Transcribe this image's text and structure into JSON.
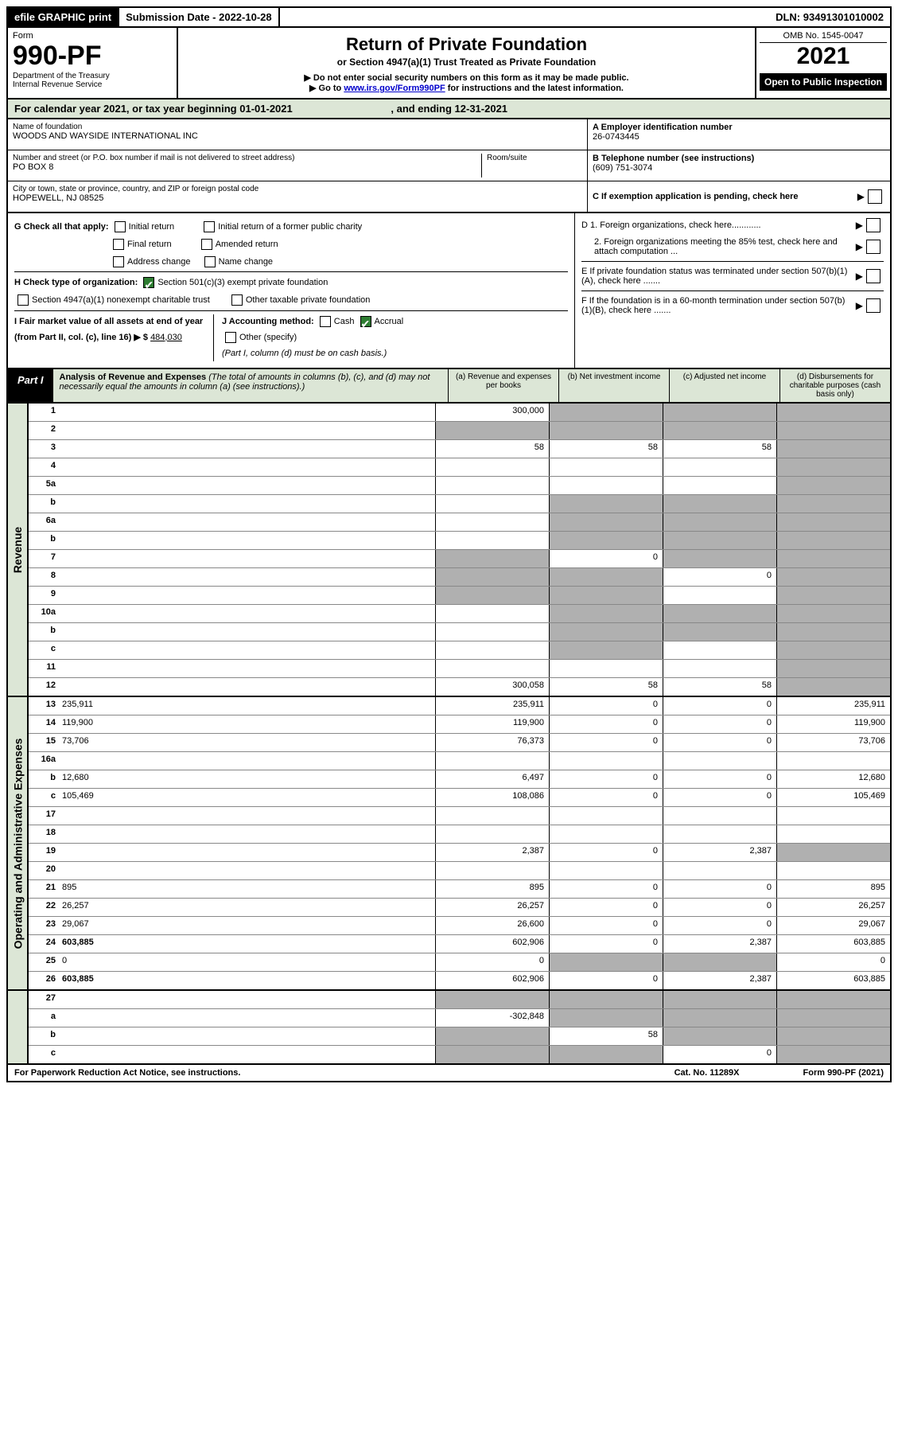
{
  "topbar": {
    "efile": "efile GRAPHIC print",
    "subdate_label": "Submission Date - ",
    "subdate": "2022-10-28",
    "dln_label": "DLN: ",
    "dln": "93491301010002"
  },
  "header": {
    "form_label": "Form",
    "form_num": "990-PF",
    "dept": "Department of the Treasury",
    "irs": "Internal Revenue Service",
    "title": "Return of Private Foundation",
    "subtitle": "or Section 4947(a)(1) Trust Treated as Private Foundation",
    "note1": "▶ Do not enter social security numbers on this form as it may be made public.",
    "note2_pre": "▶ Go to ",
    "note2_link": "www.irs.gov/Form990PF",
    "note2_post": " for instructions and the latest information.",
    "omb": "OMB No. 1545-0047",
    "year": "2021",
    "open": "Open to Public Inspection"
  },
  "calyear": {
    "text_pre": "For calendar year 2021, or tax year beginning ",
    "begin": "01-01-2021",
    "mid": " , and ending ",
    "end": "12-31-2021"
  },
  "info": {
    "name_lbl": "Name of foundation",
    "name": "WOODS AND WAYSIDE INTERNATIONAL INC",
    "addr_lbl": "Number and street (or P.O. box number if mail is not delivered to street address)",
    "addr": "PO BOX 8",
    "room_lbl": "Room/suite",
    "city_lbl": "City or town, state or province, country, and ZIP or foreign postal code",
    "city": "HOPEWELL, NJ  08525",
    "ein_lbl": "A Employer identification number",
    "ein": "26-0743445",
    "tel_lbl": "B Telephone number (see instructions)",
    "tel": "(609) 751-3074",
    "c_lbl": "C If exemption application is pending, check here"
  },
  "checks": {
    "g_label": "G Check all that apply:",
    "initial": "Initial return",
    "initial_former": "Initial return of a former public charity",
    "final": "Final return",
    "amended": "Amended return",
    "addr_change": "Address change",
    "name_change": "Name change",
    "h_label": "H Check type of organization:",
    "h_501c3": "Section 501(c)(3) exempt private foundation",
    "h_4947": "Section 4947(a)(1) nonexempt charitable trust",
    "h_other": "Other taxable private foundation",
    "i_label": "I Fair market value of all assets at end of year (from Part II, col. (c), line 16) ▶ $",
    "i_value": "484,030",
    "j_label": "J Accounting method:",
    "j_cash": "Cash",
    "j_accrual": "Accrual",
    "j_other": "Other (specify)",
    "j_note": "(Part I, column (d) must be on cash basis.)",
    "d1": "D 1. Foreign organizations, check here............",
    "d2": "2. Foreign organizations meeting the 85% test, check here and attach computation ...",
    "e": "E  If private foundation status was terminated under section 507(b)(1)(A), check here .......",
    "f": "F  If the foundation is in a 60-month termination under section 507(b)(1)(B), check here .......",
    "arrow": "▶"
  },
  "part1": {
    "label": "Part I",
    "title": "Analysis of Revenue and Expenses",
    "note": " (The total of amounts in columns (b), (c), and (d) may not necessarily equal the amounts in column (a) (see instructions).)",
    "col_a": "(a) Revenue and expenses per books",
    "col_b": "(b) Net investment income",
    "col_c": "(c) Adjusted net income",
    "col_d": "(d) Disbursements for charitable purposes (cash basis only)"
  },
  "revenue_label": "Revenue",
  "expense_label": "Operating and Administrative Expenses",
  "rows": {
    "r1": {
      "n": "1",
      "d": "",
      "a": "300,000",
      "b": "",
      "c": "",
      "sb": true,
      "sc": true,
      "sd": true
    },
    "r2": {
      "n": "2",
      "d": "",
      "a": "",
      "b": "",
      "c": "",
      "sa": true,
      "sb": true,
      "sc": true,
      "sd": true
    },
    "r3": {
      "n": "3",
      "d": "",
      "a": "58",
      "b": "58",
      "c": "58",
      "sd": true
    },
    "r4": {
      "n": "4",
      "d": "",
      "a": "",
      "b": "",
      "c": "",
      "sd": true
    },
    "r5a": {
      "n": "5a",
      "d": "",
      "a": "",
      "b": "",
      "c": "",
      "sd": true
    },
    "r5b": {
      "n": "b",
      "d": "",
      "a": "",
      "b": "",
      "c": "",
      "sa": false,
      "sb": true,
      "sc": true,
      "sd": true
    },
    "r6a": {
      "n": "6a",
      "d": "",
      "a": "",
      "b": "",
      "c": "",
      "sb": true,
      "sc": true,
      "sd": true
    },
    "r6b": {
      "n": "b",
      "d": "",
      "a": "",
      "b": "",
      "c": "",
      "sa": false,
      "sb": true,
      "sc": true,
      "sd": true
    },
    "r7": {
      "n": "7",
      "d": "",
      "a": "",
      "b": "0",
      "c": "",
      "sa": true,
      "sc": true,
      "sd": true
    },
    "r8": {
      "n": "8",
      "d": "",
      "a": "",
      "b": "",
      "c": "0",
      "sa": true,
      "sb": true,
      "sd": true
    },
    "r9": {
      "n": "9",
      "d": "",
      "a": "",
      "b": "",
      "c": "",
      "sa": true,
      "sb": true,
      "sd": true
    },
    "r10a": {
      "n": "10a",
      "d": "",
      "a": "",
      "b": "",
      "c": "",
      "sa": false,
      "sb": true,
      "sc": true,
      "sd": true
    },
    "r10b": {
      "n": "b",
      "d": "",
      "a": "",
      "b": "",
      "c": "",
      "sa": false,
      "sb": true,
      "sc": true,
      "sd": true
    },
    "r10c": {
      "n": "c",
      "d": "",
      "a": "",
      "b": "",
      "c": "",
      "sb": true,
      "sd": true
    },
    "r11": {
      "n": "11",
      "d": "",
      "a": "",
      "b": "",
      "c": "",
      "sd": true
    },
    "r12": {
      "n": "12",
      "d": "",
      "a": "300,058",
      "b": "58",
      "c": "58",
      "bold": true,
      "sd": true
    },
    "r13": {
      "n": "13",
      "d": "235,911",
      "a": "235,911",
      "b": "0",
      "c": "0"
    },
    "r14": {
      "n": "14",
      "d": "119,900",
      "a": "119,900",
      "b": "0",
      "c": "0"
    },
    "r15": {
      "n": "15",
      "d": "73,706",
      "a": "76,373",
      "b": "0",
      "c": "0"
    },
    "r16a": {
      "n": "16a",
      "d": "",
      "a": "",
      "b": "",
      "c": ""
    },
    "r16b": {
      "n": "b",
      "d": "12,680",
      "a": "6,497",
      "b": "0",
      "c": "0"
    },
    "r16c": {
      "n": "c",
      "d": "105,469",
      "a": "108,086",
      "b": "0",
      "c": "0"
    },
    "r17": {
      "n": "17",
      "d": "",
      "a": "",
      "b": "",
      "c": ""
    },
    "r18": {
      "n": "18",
      "d": "",
      "a": "",
      "b": "",
      "c": ""
    },
    "r19": {
      "n": "19",
      "d": "",
      "a": "2,387",
      "b": "0",
      "c": "2,387",
      "sd": true
    },
    "r20": {
      "n": "20",
      "d": "",
      "a": "",
      "b": "",
      "c": ""
    },
    "r21": {
      "n": "21",
      "d": "895",
      "a": "895",
      "b": "0",
      "c": "0"
    },
    "r22": {
      "n": "22",
      "d": "26,257",
      "a": "26,257",
      "b": "0",
      "c": "0"
    },
    "r23": {
      "n": "23",
      "d": "29,067",
      "a": "26,600",
      "b": "0",
      "c": "0"
    },
    "r24": {
      "n": "24",
      "d": "603,885",
      "a": "602,906",
      "b": "0",
      "c": "2,387",
      "bold": true
    },
    "r25": {
      "n": "25",
      "d": "0",
      "a": "0",
      "b": "",
      "c": "",
      "sb": true,
      "sc": true
    },
    "r26": {
      "n": "26",
      "d": "603,885",
      "a": "602,906",
      "b": "0",
      "c": "2,387",
      "bold": true
    },
    "r27": {
      "n": "27",
      "d": "",
      "a": "",
      "b": "",
      "c": "",
      "sa": true,
      "sb": true,
      "sc": true,
      "sd": true
    },
    "r27a": {
      "n": "a",
      "d": "",
      "a": "-302,848",
      "b": "",
      "c": "",
      "bold": true,
      "sb": true,
      "sc": true,
      "sd": true
    },
    "r27b": {
      "n": "b",
      "d": "",
      "a": "",
      "b": "58",
      "c": "",
      "bold": true,
      "sa": true,
      "sc": true,
      "sd": true
    },
    "r27c": {
      "n": "c",
      "d": "",
      "a": "",
      "b": "",
      "c": "0",
      "bold": true,
      "sa": true,
      "sb": true,
      "sd": true
    }
  },
  "footer": {
    "left": "For Paperwork Reduction Act Notice, see instructions.",
    "cat": "Cat. No. 11289X",
    "form": "Form 990-PF (2021)"
  },
  "colors": {
    "greenish": "#dce6d6",
    "shaded": "#b0b0b0",
    "link": "#0000cc"
  }
}
